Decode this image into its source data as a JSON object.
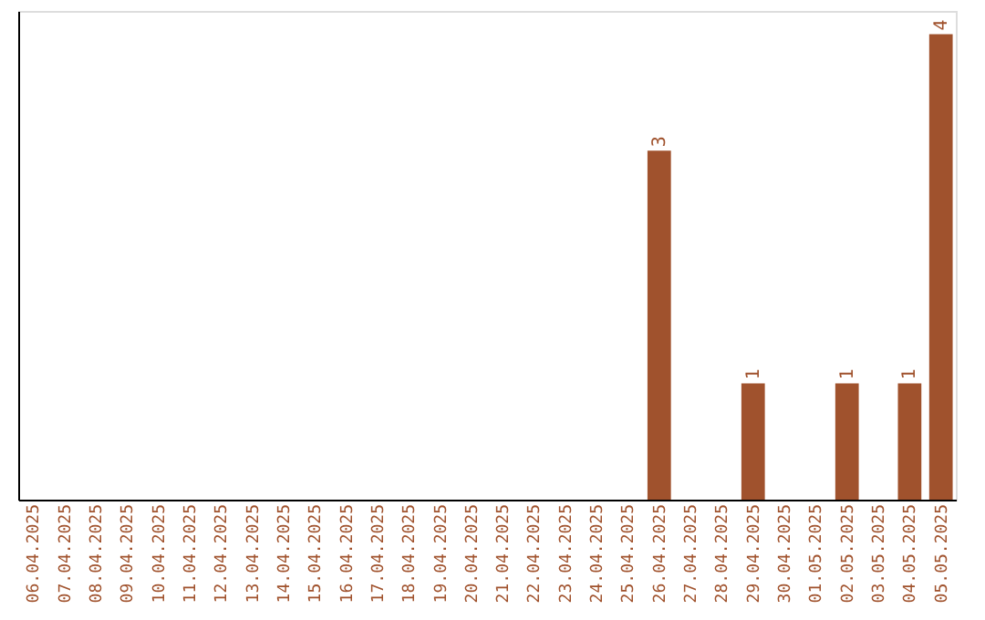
{
  "chart_data": {
    "type": "bar",
    "categories": [
      "06.04.2025",
      "07.04.2025",
      "08.04.2025",
      "09.04.2025",
      "10.04.2025",
      "11.04.2025",
      "12.04.2025",
      "13.04.2025",
      "14.04.2025",
      "15.04.2025",
      "16.04.2025",
      "17.04.2025",
      "18.04.2025",
      "19.04.2025",
      "20.04.2025",
      "21.04.2025",
      "22.04.2025",
      "23.04.2025",
      "24.04.2025",
      "25.04.2025",
      "26.04.2025",
      "27.04.2025",
      "28.04.2025",
      "29.04.2025",
      "30.04.2025",
      "01.05.2025",
      "02.05.2025",
      "03.05.2025",
      "04.05.2025",
      "05.05.2025"
    ],
    "values": [
      null,
      null,
      null,
      null,
      null,
      null,
      null,
      null,
      null,
      null,
      null,
      null,
      null,
      null,
      null,
      null,
      null,
      null,
      null,
      null,
      3,
      null,
      null,
      1,
      null,
      null,
      1,
      null,
      1,
      4
    ],
    "data_labels": true,
    "color": "#a0522d",
    "tick_labels": "x",
    "grid": false
  }
}
